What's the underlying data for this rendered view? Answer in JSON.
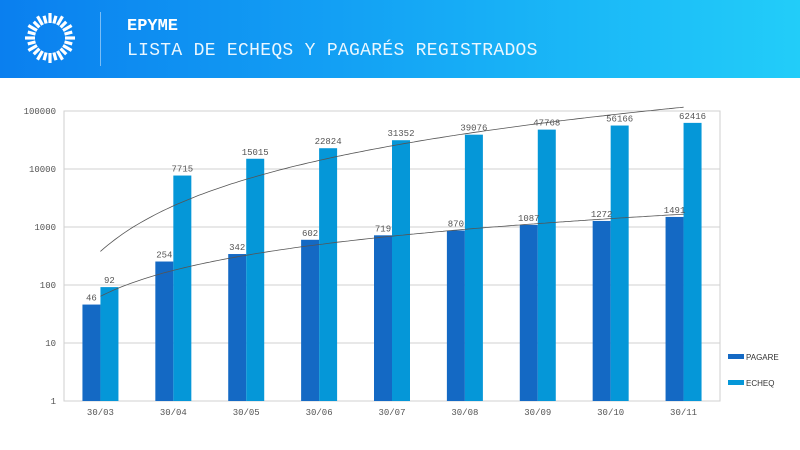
{
  "header": {
    "brand": "EPYME",
    "subtitle": "LISTA DE ECHEQS Y PAGARÉS REGISTRADOS"
  },
  "chart_data": {
    "type": "bar",
    "title": "",
    "xlabel": "",
    "ylabel": "",
    "yscale": "log",
    "ylim": [
      1,
      100000
    ],
    "yticks": [
      "1",
      "10",
      "100",
      "1000",
      "10000",
      "100000"
    ],
    "grid": true,
    "legend_position": "right",
    "categories": [
      "30/03",
      "30/04",
      "30/05",
      "30/06",
      "30/07",
      "30/08",
      "30/09",
      "30/10",
      "30/11"
    ],
    "series": [
      {
        "name": "PAGARE",
        "color": "#1469c4",
        "values": [
          46,
          254,
          342,
          602,
          719,
          870,
          1087,
          1272,
          1491
        ]
      },
      {
        "name": "ECHEQ",
        "color": "#0597d8",
        "values": [
          92,
          7715,
          15015,
          22824,
          31352,
          39076,
          47768,
          56166,
          62416
        ]
      }
    ],
    "trendlines": "logarithmic"
  }
}
